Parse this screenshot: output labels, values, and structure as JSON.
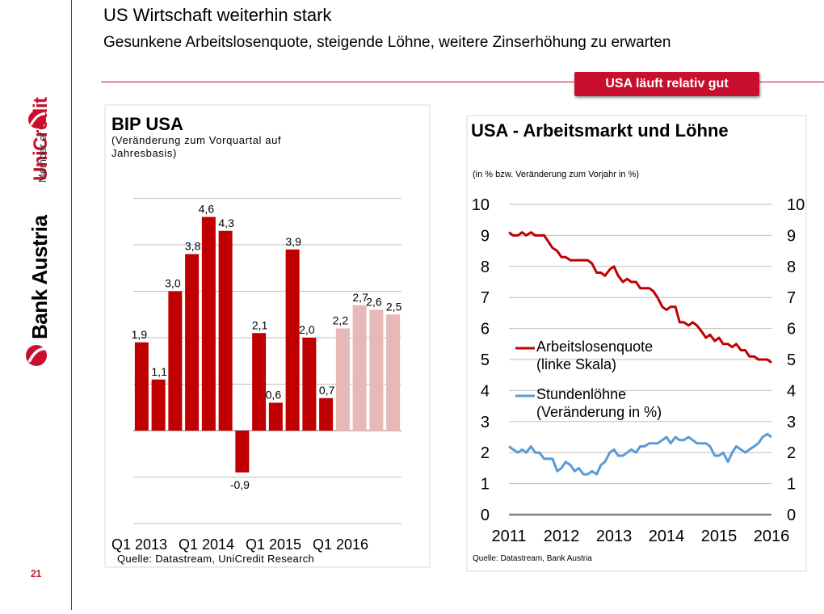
{
  "header": {
    "title": "US Wirtschaft weiterhin stark",
    "subtitle": "Gesunkene Arbeitslosenquote, steigende Löhne, weitere Zinserhöhung zu erwarten",
    "badge": "USA läuft relativ gut"
  },
  "sidebar": {
    "brand_bank": "Bank Austria",
    "member_of": "Member of",
    "brand_group": "UniCredit"
  },
  "page_number": "21",
  "colors": {
    "accent": "#c8102e",
    "bar_actual": "#c00000",
    "bar_forecast": "#e6b8b7",
    "line_unemployment": "#c00000",
    "line_wages": "#5b9bd5",
    "axis_zero": "#808080",
    "grid": "#bfbfbf"
  },
  "chart_data": [
    {
      "type": "bar",
      "title": "BIP USA",
      "subtitle": "(Veränderung zum Vorquartal auf Jahresbasis)",
      "source": "Quelle: Datastream, UniCredit Research",
      "tick_labels": [
        "Q1 2013",
        "Q1 2014",
        "Q1 2015",
        "Q1 2016"
      ],
      "tick_positions": [
        0,
        4,
        8,
        12
      ],
      "values": [
        1.9,
        1.1,
        3.0,
        3.8,
        4.6,
        4.3,
        -0.9,
        2.1,
        0.6,
        3.9,
        2.0,
        0.7,
        2.2,
        2.7,
        2.6,
        2.5
      ],
      "labels": [
        "1,9",
        "1,1",
        "3,0",
        "3,8",
        "4,6",
        "4,3",
        "-0,9",
        "2,1",
        "0,6",
        "3,9",
        "2,0",
        "0,7",
        "2,2",
        "2,7",
        "2,6",
        "2,5"
      ],
      "forecast": [
        false,
        false,
        false,
        false,
        false,
        false,
        false,
        false,
        false,
        false,
        false,
        false,
        true,
        true,
        true,
        true
      ],
      "ylim": [
        -2,
        5
      ],
      "grid": true
    },
    {
      "type": "line",
      "title": "USA - Arbeitsmarkt und Löhne",
      "subtitle": "(in % bzw. Veränderung zum Vorjahr in %)",
      "source": "Quelle: Datastream, Bank Austria",
      "x_ticks": [
        2011,
        2012,
        2013,
        2014,
        2015,
        2016
      ],
      "xlim": [
        2011,
        2016
      ],
      "ylim": [
        0,
        10
      ],
      "y_ticks": [
        0,
        1,
        2,
        3,
        4,
        5,
        6,
        7,
        8,
        9,
        10
      ],
      "grid": true,
      "legend_position": "middle-left",
      "series": [
        {
          "name": "Arbeitslosenquote (linke Skala)",
          "x": [
            2011.0,
            2011.08,
            2011.17,
            2011.25,
            2011.33,
            2011.42,
            2011.5,
            2011.58,
            2011.67,
            2011.75,
            2011.83,
            2011.92,
            2012.0,
            2012.08,
            2012.17,
            2012.25,
            2012.33,
            2012.42,
            2012.5,
            2012.58,
            2012.67,
            2012.75,
            2012.83,
            2012.92,
            2013.0,
            2013.08,
            2013.17,
            2013.25,
            2013.33,
            2013.42,
            2013.5,
            2013.58,
            2013.67,
            2013.75,
            2013.83,
            2013.92,
            2014.0,
            2014.08,
            2014.17,
            2014.25,
            2014.33,
            2014.42,
            2014.5,
            2014.58,
            2014.67,
            2014.75,
            2014.83,
            2014.92,
            2015.0,
            2015.08,
            2015.17,
            2015.25,
            2015.33,
            2015.42,
            2015.5,
            2015.58,
            2015.67,
            2015.75,
            2015.83,
            2015.92,
            2016.0
          ],
          "values": [
            9.1,
            9.0,
            9.0,
            9.1,
            9.0,
            9.1,
            9.0,
            9.0,
            9.0,
            8.8,
            8.6,
            8.5,
            8.3,
            8.3,
            8.2,
            8.2,
            8.2,
            8.2,
            8.2,
            8.1,
            7.8,
            7.8,
            7.7,
            7.9,
            8.0,
            7.7,
            7.5,
            7.6,
            7.5,
            7.5,
            7.3,
            7.3,
            7.3,
            7.2,
            7.0,
            6.7,
            6.6,
            6.7,
            6.7,
            6.2,
            6.2,
            6.1,
            6.2,
            6.1,
            5.9,
            5.7,
            5.8,
            5.6,
            5.7,
            5.5,
            5.5,
            5.4,
            5.5,
            5.3,
            5.3,
            5.1,
            5.1,
            5.0,
            5.0,
            5.0,
            4.9
          ]
        },
        {
          "name": "Stundenlöhne (Veränderung in %)",
          "x": [
            2011.0,
            2011.08,
            2011.17,
            2011.25,
            2011.33,
            2011.42,
            2011.5,
            2011.58,
            2011.67,
            2011.75,
            2011.83,
            2011.92,
            2012.0,
            2012.08,
            2012.17,
            2012.25,
            2012.33,
            2012.42,
            2012.5,
            2012.58,
            2012.67,
            2012.75,
            2012.83,
            2012.92,
            2013.0,
            2013.08,
            2013.17,
            2013.25,
            2013.33,
            2013.42,
            2013.5,
            2013.58,
            2013.67,
            2013.75,
            2013.83,
            2013.92,
            2014.0,
            2014.08,
            2014.17,
            2014.25,
            2014.33,
            2014.42,
            2014.5,
            2014.58,
            2014.67,
            2014.75,
            2014.83,
            2014.92,
            2015.0,
            2015.08,
            2015.17,
            2015.25,
            2015.33,
            2015.42,
            2015.5,
            2015.58,
            2015.67,
            2015.75,
            2015.83,
            2015.92,
            2016.0
          ],
          "values": [
            2.2,
            2.1,
            2.0,
            2.1,
            2.0,
            2.2,
            2.0,
            2.0,
            1.8,
            1.8,
            1.8,
            1.4,
            1.5,
            1.7,
            1.6,
            1.4,
            1.5,
            1.3,
            1.3,
            1.4,
            1.3,
            1.6,
            1.7,
            2.0,
            2.1,
            1.9,
            1.9,
            2.0,
            2.1,
            2.0,
            2.2,
            2.2,
            2.3,
            2.3,
            2.3,
            2.4,
            2.5,
            2.3,
            2.5,
            2.4,
            2.4,
            2.5,
            2.4,
            2.3,
            2.3,
            2.3,
            2.2,
            1.9,
            1.9,
            2.0,
            1.7,
            2.0,
            2.2,
            2.1,
            2.0,
            2.1,
            2.2,
            2.3,
            2.5,
            2.6,
            2.5
          ]
        }
      ]
    }
  ]
}
